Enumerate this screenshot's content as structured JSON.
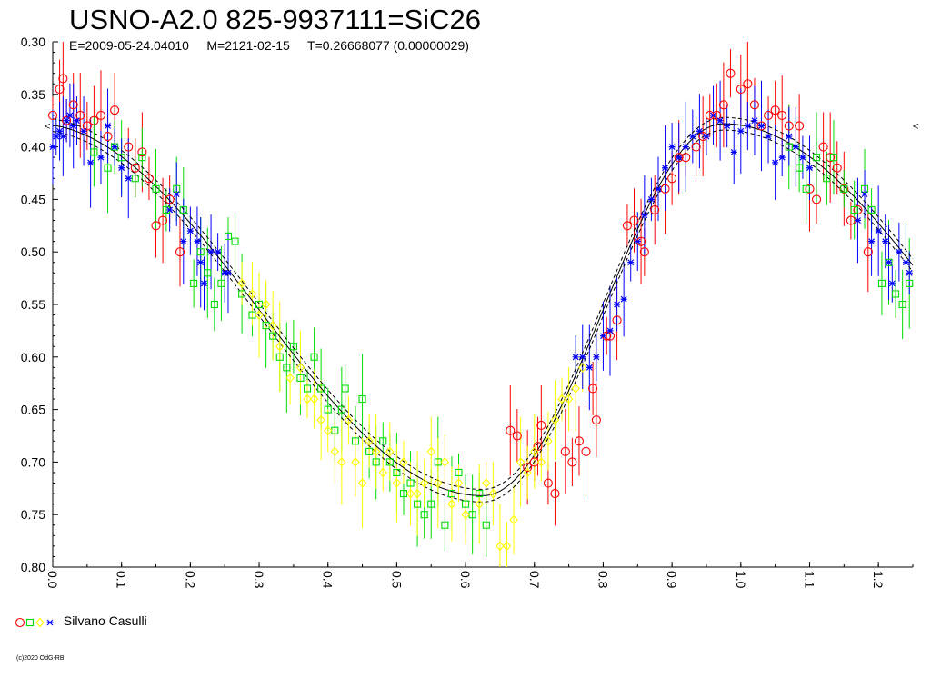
{
  "title": "USNO-A2.0 825-9937111=SiC26",
  "subtitle": "E=2009-05-24.04010     M=2121-02-15     T=0.26668077 (0.00000029)",
  "credit": "(c)2020 OdG-RB",
  "chart_data": {
    "type": "scatter",
    "title": "USNO-A2.0 825-9937111=SiC26",
    "xlabel": "",
    "ylabel": "",
    "xlim": [
      0.0,
      1.25
    ],
    "ylim": [
      0.3,
      0.8
    ],
    "y_inverted": true,
    "x_ticks": [
      "0.0",
      "0.1",
      "0.2",
      "0.3",
      "0.4",
      "0.5",
      "0.6",
      "0.7",
      "0.8",
      "0.9",
      "1.0",
      "1.1",
      "1.2"
    ],
    "y_ticks": [
      "0.30",
      "0.35",
      "0.40",
      "0.45",
      "0.50",
      "0.55",
      "0.60",
      "0.65",
      "0.70",
      "0.75",
      "0.80"
    ],
    "markers": [
      "<",
      "<"
    ],
    "legend": {
      "label": "Silvano Casulli",
      "placement": "bottom-left",
      "symbols": [
        {
          "shape": "circle",
          "color": "#ff0000"
        },
        {
          "shape": "square",
          "color": "#00dd00"
        },
        {
          "shape": "diamond",
          "color": "#ffff00"
        },
        {
          "shape": "star",
          "color": "#0000ff"
        }
      ]
    },
    "model_curve": {
      "min_phase": 0.625,
      "max_phase": 0.975,
      "mag_max": 0.378,
      "mag_min": 0.732,
      "envelope": 0.006,
      "harmonic2": 0.012
    },
    "series": [
      {
        "shape": "circle",
        "color": "#ff0000",
        "points": [
          [
            0.0,
            0.37
          ],
          [
            0.01,
            0.345
          ],
          [
            0.015,
            0.335
          ],
          [
            0.02,
            0.375
          ],
          [
            0.03,
            0.36
          ],
          [
            0.04,
            0.37
          ],
          [
            0.05,
            0.38
          ],
          [
            0.06,
            0.375
          ],
          [
            0.07,
            0.37
          ],
          [
            0.08,
            0.39
          ],
          [
            0.09,
            0.365
          ],
          [
            0.11,
            0.4
          ],
          [
            0.12,
            0.42
          ],
          [
            0.13,
            0.405
          ],
          [
            0.14,
            0.43
          ],
          [
            0.15,
            0.475
          ],
          [
            0.16,
            0.47
          ],
          [
            0.17,
            0.45
          ],
          [
            0.185,
            0.5
          ],
          [
            0.665,
            0.67
          ],
          [
            0.675,
            0.675
          ],
          [
            0.69,
            0.705
          ],
          [
            0.7,
            0.7
          ],
          [
            0.705,
            0.685
          ],
          [
            0.71,
            0.665
          ],
          [
            0.72,
            0.72
          ],
          [
            0.73,
            0.73
          ],
          [
            0.745,
            0.69
          ],
          [
            0.755,
            0.7
          ],
          [
            0.765,
            0.68
          ],
          [
            0.775,
            0.69
          ],
          [
            0.785,
            0.63
          ],
          [
            0.79,
            0.66
          ],
          [
            0.805,
            0.58
          ],
          [
            0.81,
            0.58
          ],
          [
            0.82,
            0.565
          ],
          [
            0.835,
            0.475
          ],
          [
            0.845,
            0.47
          ],
          [
            0.855,
            0.49
          ],
          [
            0.86,
            0.5
          ],
          [
            0.875,
            0.46
          ],
          [
            0.89,
            0.44
          ],
          [
            0.9,
            0.43
          ],
          [
            0.91,
            0.41
          ],
          [
            0.92,
            0.41
          ],
          [
            0.935,
            0.4
          ],
          [
            0.945,
            0.39
          ],
          [
            0.955,
            0.37
          ],
          [
            0.965,
            0.37
          ],
          [
            0.975,
            0.36
          ],
          [
            0.985,
            0.33
          ],
          [
            1.0,
            0.345
          ],
          [
            1.01,
            0.34
          ],
          [
            1.02,
            0.36
          ],
          [
            1.03,
            0.38
          ],
          [
            1.04,
            0.37
          ],
          [
            1.05,
            0.365
          ],
          [
            1.06,
            0.37
          ],
          [
            1.07,
            0.38
          ],
          [
            1.085,
            0.38
          ],
          [
            1.1,
            0.44
          ],
          [
            1.11,
            0.45
          ],
          [
            1.12,
            0.4
          ],
          [
            1.13,
            0.41
          ],
          [
            1.14,
            0.42
          ],
          [
            1.15,
            0.44
          ],
          [
            1.16,
            0.47
          ],
          [
            1.17,
            0.46
          ],
          [
            1.185,
            0.5
          ]
        ]
      },
      {
        "shape": "square",
        "color": "#00dd00",
        "points": [
          [
            0.06,
            0.405
          ],
          [
            0.08,
            0.42
          ],
          [
            0.09,
            0.4
          ],
          [
            0.1,
            0.41
          ],
          [
            0.12,
            0.43
          ],
          [
            0.13,
            0.41
          ],
          [
            0.15,
            0.44
          ],
          [
            0.165,
            0.46
          ],
          [
            0.18,
            0.44
          ],
          [
            0.19,
            0.46
          ],
          [
            0.205,
            0.53
          ],
          [
            0.215,
            0.5
          ],
          [
            0.225,
            0.52
          ],
          [
            0.235,
            0.55
          ],
          [
            0.245,
            0.53
          ],
          [
            0.255,
            0.485
          ],
          [
            0.265,
            0.49
          ],
          [
            0.275,
            0.54
          ],
          [
            0.29,
            0.56
          ],
          [
            0.3,
            0.55
          ],
          [
            0.31,
            0.57
          ],
          [
            0.32,
            0.58
          ],
          [
            0.33,
            0.6
          ],
          [
            0.34,
            0.61
          ],
          [
            0.35,
            0.59
          ],
          [
            0.36,
            0.62
          ],
          [
            0.37,
            0.63
          ],
          [
            0.38,
            0.6
          ],
          [
            0.39,
            0.63
          ],
          [
            0.4,
            0.65
          ],
          [
            0.41,
            0.67
          ],
          [
            0.42,
            0.65
          ],
          [
            0.425,
            0.63
          ],
          [
            0.44,
            0.68
          ],
          [
            0.45,
            0.64
          ],
          [
            0.46,
            0.69
          ],
          [
            0.47,
            0.7
          ],
          [
            0.48,
            0.68
          ],
          [
            0.49,
            0.7
          ],
          [
            0.5,
            0.71
          ],
          [
            0.51,
            0.73
          ],
          [
            0.52,
            0.72
          ],
          [
            0.53,
            0.74
          ],
          [
            0.54,
            0.75
          ],
          [
            0.55,
            0.74
          ],
          [
            0.56,
            0.7
          ],
          [
            0.57,
            0.76
          ],
          [
            0.58,
            0.73
          ],
          [
            0.59,
            0.71
          ],
          [
            0.6,
            0.74
          ],
          [
            0.61,
            0.75
          ],
          [
            0.62,
            0.73
          ],
          [
            0.63,
            0.76
          ],
          [
            1.07,
            0.4
          ],
          [
            1.085,
            0.42
          ],
          [
            1.095,
            0.44
          ],
          [
            1.11,
            0.41
          ],
          [
            1.125,
            0.43
          ],
          [
            1.135,
            0.41
          ],
          [
            1.15,
            0.44
          ],
          [
            1.165,
            0.46
          ],
          [
            1.18,
            0.44
          ],
          [
            1.19,
            0.46
          ],
          [
            1.205,
            0.53
          ],
          [
            1.215,
            0.51
          ],
          [
            1.225,
            0.54
          ],
          [
            1.235,
            0.55
          ],
          [
            1.245,
            0.53
          ]
        ]
      },
      {
        "shape": "diamond",
        "color": "#ffff00",
        "points": [
          [
            0.275,
            0.53
          ],
          [
            0.29,
            0.54
          ],
          [
            0.3,
            0.56
          ],
          [
            0.31,
            0.55
          ],
          [
            0.32,
            0.57
          ],
          [
            0.33,
            0.59
          ],
          [
            0.345,
            0.62
          ],
          [
            0.36,
            0.61
          ],
          [
            0.37,
            0.64
          ],
          [
            0.38,
            0.64
          ],
          [
            0.39,
            0.66
          ],
          [
            0.4,
            0.67
          ],
          [
            0.41,
            0.69
          ],
          [
            0.42,
            0.7
          ],
          [
            0.43,
            0.66
          ],
          [
            0.44,
            0.7
          ],
          [
            0.45,
            0.72
          ],
          [
            0.46,
            0.68
          ],
          [
            0.47,
            0.69
          ],
          [
            0.48,
            0.71
          ],
          [
            0.49,
            0.69
          ],
          [
            0.5,
            0.72
          ],
          [
            0.51,
            0.7
          ],
          [
            0.52,
            0.73
          ],
          [
            0.53,
            0.73
          ],
          [
            0.54,
            0.72
          ],
          [
            0.55,
            0.69
          ],
          [
            0.56,
            0.72
          ],
          [
            0.57,
            0.7
          ],
          [
            0.58,
            0.74
          ],
          [
            0.59,
            0.72
          ],
          [
            0.6,
            0.75
          ],
          [
            0.62,
            0.74
          ],
          [
            0.63,
            0.72
          ],
          [
            0.64,
            0.73
          ],
          [
            0.65,
            0.78
          ],
          [
            0.66,
            0.78
          ],
          [
            0.67,
            0.755
          ],
          [
            0.68,
            0.7
          ],
          [
            0.69,
            0.71
          ],
          [
            0.7,
            0.69
          ],
          [
            0.71,
            0.7
          ],
          [
            0.72,
            0.68
          ],
          [
            0.73,
            0.66
          ],
          [
            0.74,
            0.64
          ],
          [
            0.75,
            0.64
          ],
          [
            0.76,
            0.63
          ],
          [
            0.77,
            0.61
          ]
        ]
      },
      {
        "shape": "star",
        "color": "#0000ff",
        "points": [
          [
            0.0,
            0.4
          ],
          [
            0.005,
            0.39
          ],
          [
            0.01,
            0.385
          ],
          [
            0.015,
            0.39
          ],
          [
            0.02,
            0.375
          ],
          [
            0.025,
            0.37
          ],
          [
            0.03,
            0.38
          ],
          [
            0.035,
            0.375
          ],
          [
            0.045,
            0.385
          ],
          [
            0.055,
            0.415
          ],
          [
            0.07,
            0.41
          ],
          [
            0.08,
            0.38
          ],
          [
            0.09,
            0.4
          ],
          [
            0.1,
            0.42
          ],
          [
            0.11,
            0.43
          ],
          [
            0.17,
            0.46
          ],
          [
            0.18,
            0.445
          ],
          [
            0.19,
            0.49
          ],
          [
            0.2,
            0.48
          ],
          [
            0.21,
            0.49
          ],
          [
            0.215,
            0.51
          ],
          [
            0.22,
            0.53
          ],
          [
            0.23,
            0.5
          ],
          [
            0.24,
            0.5
          ],
          [
            0.25,
            0.52
          ],
          [
            0.255,
            0.52
          ],
          [
            0.76,
            0.6
          ],
          [
            0.77,
            0.6
          ],
          [
            0.78,
            0.61
          ],
          [
            0.79,
            0.6
          ],
          [
            0.8,
            0.58
          ],
          [
            0.81,
            0.575
          ],
          [
            0.82,
            0.55
          ],
          [
            0.83,
            0.545
          ],
          [
            0.84,
            0.51
          ],
          [
            0.85,
            0.49
          ],
          [
            0.86,
            0.465
          ],
          [
            0.87,
            0.45
          ],
          [
            0.88,
            0.44
          ],
          [
            0.89,
            0.42
          ],
          [
            0.9,
            0.4
          ],
          [
            0.91,
            0.41
          ],
          [
            0.92,
            0.4
          ],
          [
            0.93,
            0.39
          ],
          [
            0.94,
            0.385
          ],
          [
            0.95,
            0.39
          ],
          [
            0.96,
            0.37
          ],
          [
            0.97,
            0.375
          ],
          [
            0.98,
            0.38
          ],
          [
            0.99,
            0.405
          ],
          [
            1.0,
            0.385
          ],
          [
            1.01,
            0.38
          ],
          [
            1.02,
            0.375
          ],
          [
            1.03,
            0.38
          ],
          [
            1.04,
            0.39
          ],
          [
            1.05,
            0.415
          ],
          [
            1.06,
            0.41
          ],
          [
            1.07,
            0.39
          ],
          [
            1.08,
            0.4
          ],
          [
            1.09,
            0.41
          ],
          [
            1.1,
            0.42
          ],
          [
            1.17,
            0.47
          ],
          [
            1.18,
            0.445
          ],
          [
            1.19,
            0.49
          ],
          [
            1.2,
            0.48
          ],
          [
            1.21,
            0.49
          ],
          [
            1.215,
            0.51
          ],
          [
            1.22,
            0.53
          ],
          [
            1.23,
            0.5
          ],
          [
            1.24,
            0.51
          ],
          [
            1.245,
            0.52
          ]
        ]
      }
    ]
  }
}
